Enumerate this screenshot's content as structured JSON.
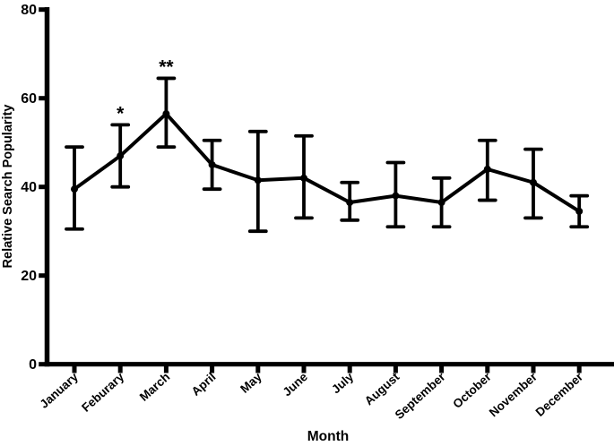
{
  "figure": {
    "background": "#ffffff",
    "ink_color": "#000000"
  },
  "chart_data": {
    "type": "line",
    "title": "",
    "xlabel": "Month",
    "ylabel": "Relative Search Popularity",
    "categories": [
      "January",
      "Feburary",
      "March",
      "April",
      "May",
      "June",
      "July",
      "August",
      "September",
      "October",
      "November",
      "December"
    ],
    "series": [
      {
        "name": "Relative Search Popularity",
        "values": [
          39.5,
          47,
          56.5,
          45,
          41.5,
          42,
          36.5,
          38,
          36.5,
          44,
          41,
          34.5
        ],
        "error_low": [
          30.5,
          40,
          49,
          39.5,
          30,
          33,
          32.5,
          31,
          31,
          37,
          33,
          31
        ],
        "error_high": [
          49,
          54,
          64.5,
          50.5,
          52.5,
          51.5,
          41,
          45.5,
          42,
          50.5,
          48.5,
          38
        ]
      }
    ],
    "annotations": [
      {
        "category": "Feburary",
        "index": 1,
        "text": "*"
      },
      {
        "category": "March",
        "index": 2,
        "text": "**"
      }
    ],
    "ylim": [
      0,
      80
    ],
    "yticks": [
      0,
      20,
      40,
      60,
      80
    ],
    "grid": false,
    "legend": "none",
    "marker": "circle",
    "error_bars": "asymmetric-with-caps",
    "x_tick_rotation_deg": -45
  }
}
